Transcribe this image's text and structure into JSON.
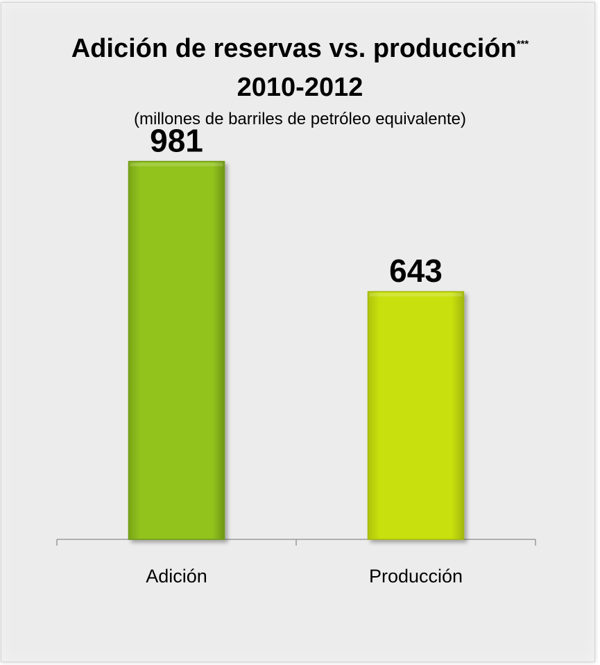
{
  "title": {
    "line1": "Adición de reservas vs. producción",
    "line1_superscript": "***",
    "line2": "2010-2012"
  },
  "subtitle": "(millones de barriles de petróleo equivalente)",
  "chart_data": {
    "type": "bar",
    "categories": [
      "Adición",
      "Producción"
    ],
    "values": [
      981,
      643
    ],
    "data_labels": [
      "981",
      "643"
    ],
    "title": "Adición de reservas vs. producción*** 2010-2012",
    "subtitle": "(millones de barriles de petróleo equivalente)",
    "xlabel": "",
    "ylabel": "",
    "ylim": [
      0,
      1400
    ],
    "grid": false,
    "legend": "none",
    "bar_colors": [
      "#92c31f",
      "#c8e00f"
    ],
    "bar_edge_colors": [
      "#6f9a12",
      "#a3b80a"
    ]
  }
}
